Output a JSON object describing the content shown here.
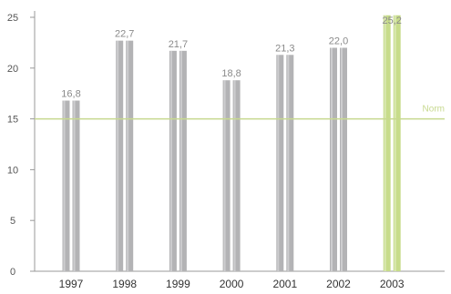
{
  "chart_data": {
    "type": "bar",
    "title": "",
    "xlabel": "",
    "ylabel": "",
    "categories": [
      "1997",
      "1998",
      "1999",
      "2000",
      "2001",
      "2002",
      "2003"
    ],
    "values": [
      16.8,
      22.7,
      21.7,
      18.8,
      21.3,
      22.0,
      25.2
    ],
    "value_labels": [
      "16,8",
      "22,7",
      "21,7",
      "18,8",
      "21,3",
      "22,0",
      "25,2"
    ],
    "highlight_category": "2003",
    "y_ticks": [
      0,
      5,
      10,
      15,
      20,
      25
    ],
    "ylim": [
      0,
      25
    ],
    "grid": false,
    "reference_line": {
      "value": 15,
      "label": "Norm"
    },
    "colors": {
      "bar": "#b3b3b5",
      "bar_highlight": "#c7dc8a",
      "norm_line": "#c7d98f",
      "highlight_text": "#a9c764",
      "axis": "#999999"
    }
  }
}
